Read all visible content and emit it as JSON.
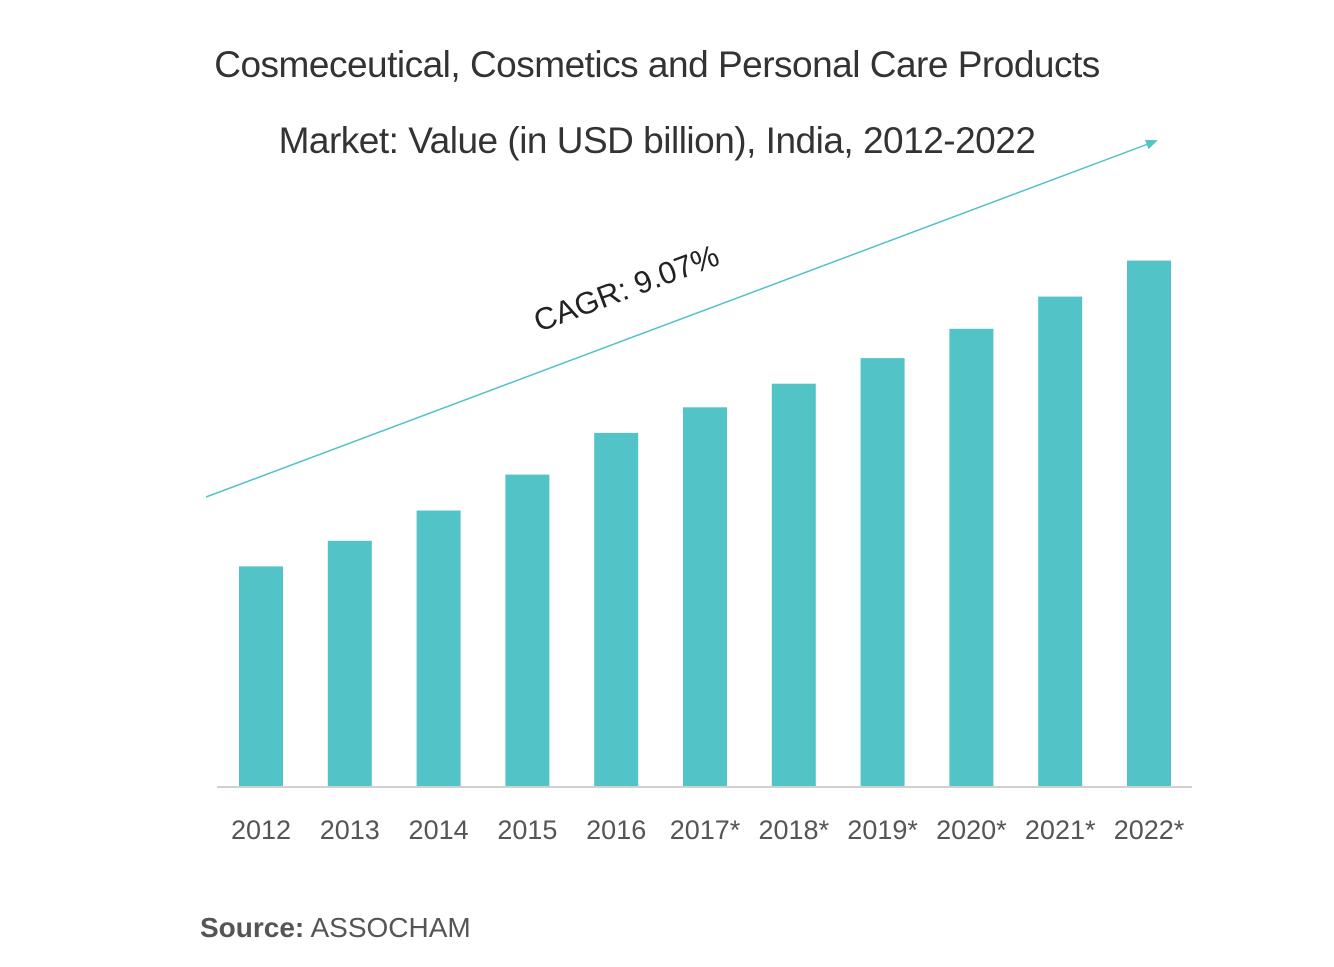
{
  "title_lines": [
    "Cosmeceutical, Cosmetics and Personal Care Products",
    "Market: Value (in USD billion), India, 2012-2022"
  ],
  "annotation": "CAGR: 9.07%",
  "source": {
    "label": "Source:",
    "value": "ASSOCHAM"
  },
  "colors": {
    "bar": "#52C3C6",
    "trend_arrow": "#52C3C6",
    "axis": "#D0D0D0",
    "tick_text": "#555555",
    "title_text": "#333333"
  },
  "chart_data": {
    "type": "bar",
    "title": "Cosmeceutical, Cosmetics and Personal Care Products Market: Value (in USD billion), India, 2012-2022",
    "categories": [
      "2012",
      "2013",
      "2014",
      "2015",
      "2016",
      "2017*",
      "2018*",
      "2019*",
      "2020*",
      "2021*",
      "2022*"
    ],
    "values": [
      233,
      260,
      292,
      330,
      374,
      401,
      426,
      453,
      484,
      518,
      556
    ],
    "ylim": [
      0,
      620
    ],
    "xlabel": "",
    "ylabel": "",
    "grid": false,
    "legend": "none",
    "annotations": [
      "CAGR: 9.07%"
    ]
  }
}
